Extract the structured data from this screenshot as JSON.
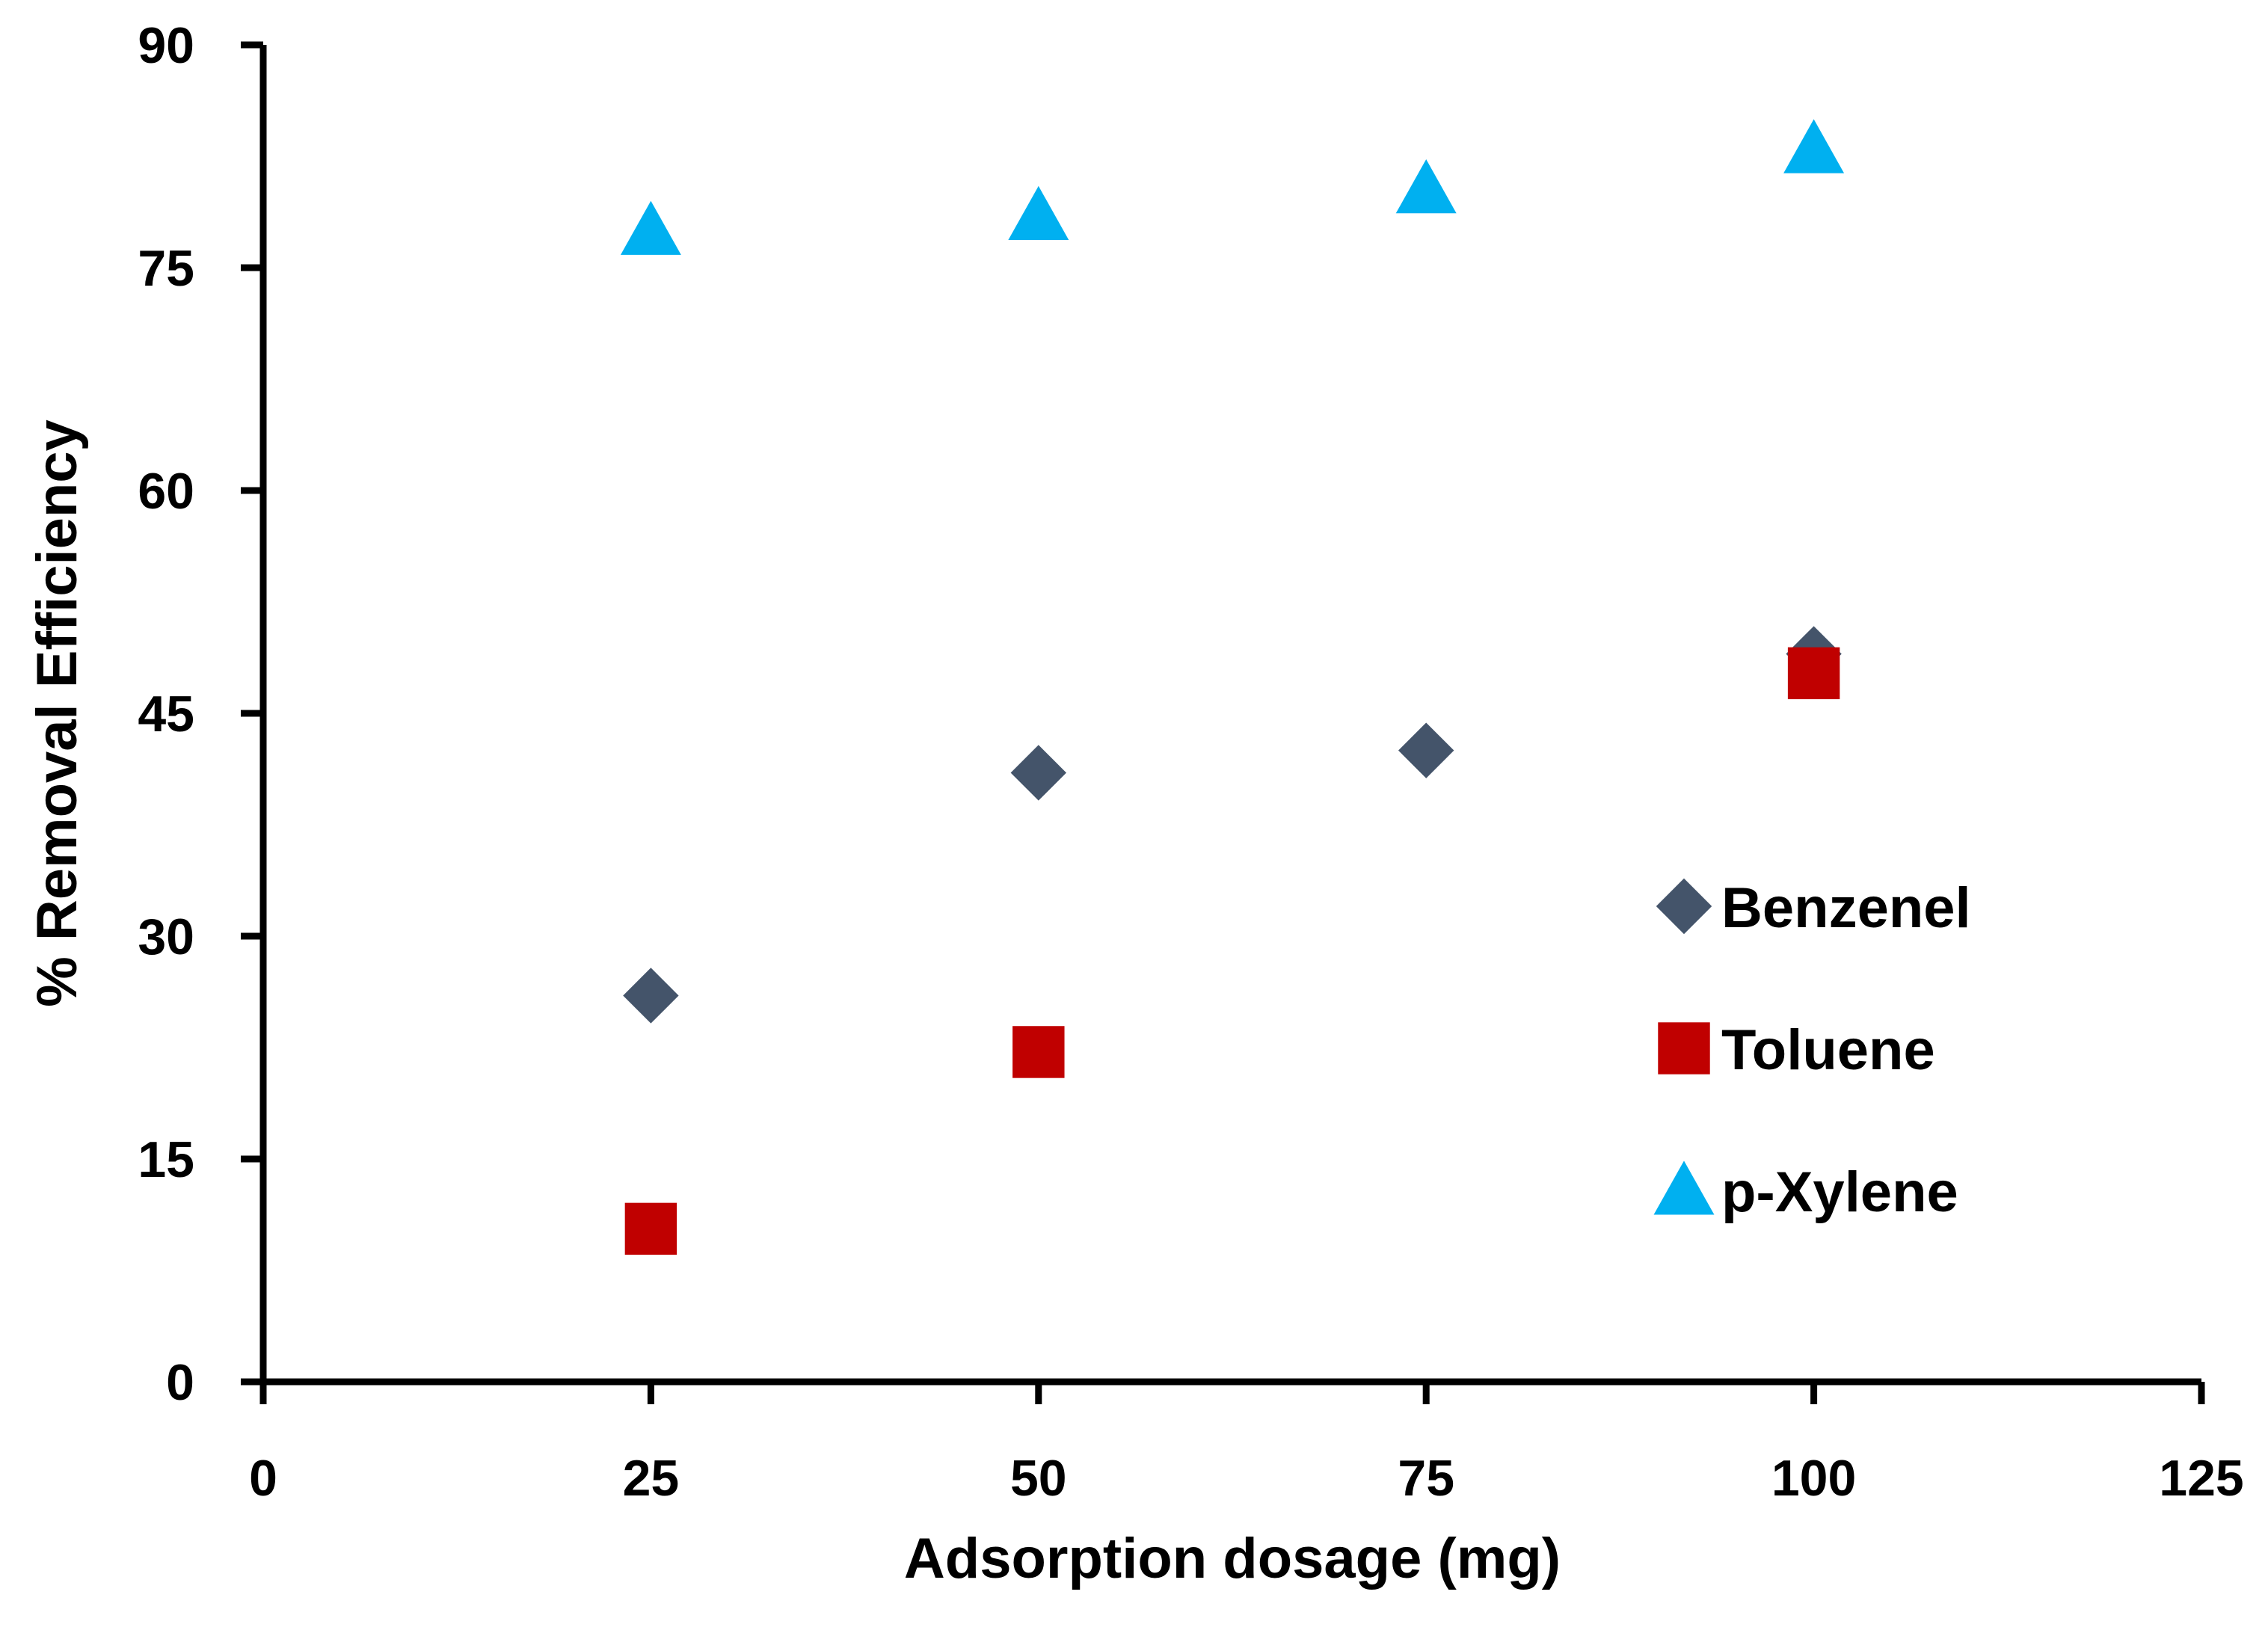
{
  "chart_data": {
    "type": "scatter",
    "title": "",
    "xlabel": "Adsorption dosage (mg)",
    "ylabel": "% Removal Efficiency",
    "xlim": [
      0,
      125
    ],
    "ylim": [
      0,
      90
    ],
    "xticks": [
      0,
      25,
      50,
      75,
      100,
      125
    ],
    "yticks": [
      0,
      15,
      30,
      45,
      60,
      75,
      90
    ],
    "grid": false,
    "legend_position": "right",
    "series": [
      {
        "name": "Benzenel",
        "marker": "diamond",
        "color": "#44546A",
        "x": [
          25,
          50,
          75,
          100
        ],
        "y": [
          26,
          41,
          42.5,
          49
        ]
      },
      {
        "name": "Toluene",
        "marker": "square",
        "color": "#C00000",
        "x": [
          25,
          50,
          100
        ],
        "y": [
          10.3,
          22.2,
          47.7
        ]
      },
      {
        "name": "p-Xylene",
        "marker": "triangle",
        "color": "#00B0F0",
        "x": [
          25,
          50,
          75,
          100
        ],
        "y": [
          77.5,
          78.5,
          80.3,
          83
        ]
      }
    ]
  }
}
